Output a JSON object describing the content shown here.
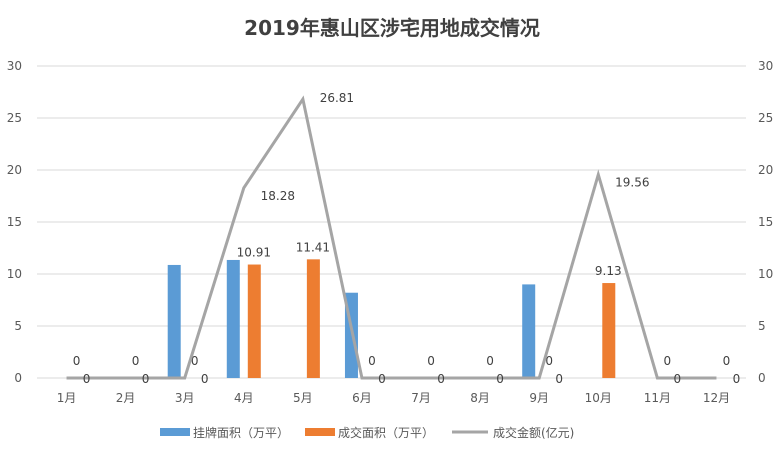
{
  "chart_data": {
    "type": "bar+line",
    "title": "2019年惠山区涉宅用地成交情况",
    "categories": [
      "1月",
      "2月",
      "3月",
      "4月",
      "5月",
      "6月",
      "7月",
      "8月",
      "9月",
      "10月",
      "11月",
      "12月"
    ],
    "series": [
      {
        "name": "挂牌面积（万平）",
        "type": "bar",
        "axis": "left",
        "color": "#5B9BD5",
        "values": [
          0,
          0,
          10.87,
          11.35,
          0,
          8.2,
          0,
          0,
          9.0,
          0,
          0,
          0
        ]
      },
      {
        "name": "成交面积（万平）",
        "type": "bar",
        "axis": "left",
        "color": "#ED7D31",
        "values": [
          0,
          0,
          0,
          10.91,
          11.41,
          0,
          0,
          0,
          0,
          9.13,
          0,
          0
        ],
        "labels": [
          "0",
          "0",
          "0",
          "10.91",
          "11.41",
          "0",
          "0",
          "0",
          "0",
          "9.13",
          "0",
          "0"
        ]
      },
      {
        "name": "成交金额(亿元)",
        "type": "line",
        "axis": "right",
        "color": "#A5A5A5",
        "values": [
          0,
          0,
          0,
          18.28,
          26.81,
          0,
          0,
          0,
          0,
          19.56,
          0,
          0
        ],
        "labels": [
          "0",
          "0",
          "0",
          "18.28",
          "26.81",
          "0",
          "0",
          "0",
          "0",
          "19.56",
          "0",
          "0"
        ]
      }
    ],
    "ylim": [
      0,
      30
    ],
    "yticks": [
      "0",
      "5",
      "10",
      "15",
      "20",
      "25",
      "30"
    ],
    "y2lim": [
      0,
      30
    ],
    "y2ticks": [
      "0",
      "5",
      "10",
      "15",
      "20",
      "25",
      "30"
    ],
    "grid": true,
    "legend": "bottom"
  }
}
